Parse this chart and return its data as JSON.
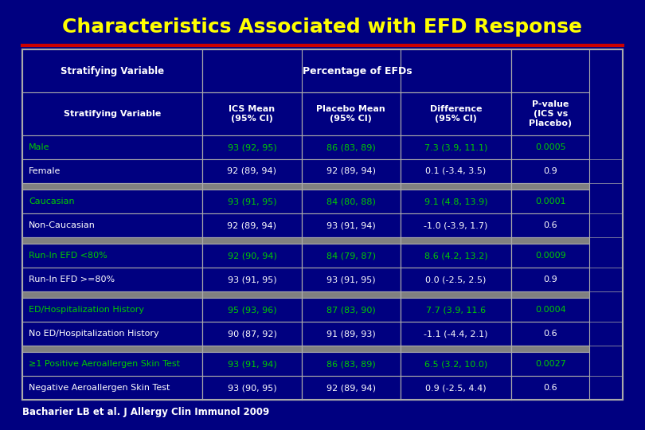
{
  "title": "Characteristics Associated with EFD Response",
  "title_color": "#FFFF00",
  "bg_color": "#000080",
  "table_bg_dark": "#000080",
  "table_bg_light": "#FFFFFF",
  "separator_color": "#808080",
  "red_line_color": "#CC0000",
  "footnote": "Bacharier LB et al. J Allergy Clin Immunol 2009",
  "col_headers": [
    "Stratifying Variable",
    "ICS Mean\n(95% CI)",
    "Placebo Mean\n(95% CI)",
    "Difference\n(95% CI)",
    "P-value\n(ICS vs\nPlacebo)"
  ],
  "span_header": "Percentage of EFDs",
  "rows": [
    {
      "label": "Male",
      "ics": "93 (92, 95)",
      "placebo": "86 (83, 89)",
      "diff": "7.3 (3.9, 11.1)",
      "pval": "0.0005",
      "highlight": true,
      "group_sep_before": false
    },
    {
      "label": "Female",
      "ics": "92 (89, 94)",
      "placebo": "92 (89, 94)",
      "diff": "0.1 (-3.4, 3.5)",
      "pval": "0.9",
      "highlight": false,
      "group_sep_before": false
    },
    {
      "label": "",
      "ics": "",
      "placebo": "",
      "diff": "",
      "pval": "",
      "highlight": false,
      "group_sep_before": true,
      "spacer": true
    },
    {
      "label": "Caucasian",
      "ics": "93 (91, 95)",
      "placebo": "84 (80, 88)",
      "diff": "9.1 (4.8, 13.9)",
      "pval": "0.0001",
      "highlight": true,
      "group_sep_before": false
    },
    {
      "label": "Non-Caucasian",
      "ics": "92 (89, 94)",
      "placebo": "93 (91, 94)",
      "diff": "-1.0 (-3.9, 1.7)",
      "pval": "0.6",
      "highlight": false,
      "group_sep_before": false
    },
    {
      "label": "",
      "ics": "",
      "placebo": "",
      "diff": "",
      "pval": "",
      "highlight": false,
      "group_sep_before": true,
      "spacer": true
    },
    {
      "label": "Run-In EFD <80%",
      "ics": "92 (90, 94)",
      "placebo": "84 (79, 87)",
      "diff": "8.6 (4.2, 13.2)",
      "pval": "0.0009",
      "highlight": true,
      "group_sep_before": false
    },
    {
      "label": "Run-In EFD >=80%",
      "ics": "93 (91, 95)",
      "placebo": "93 (91, 95)",
      "diff": "0.0 (-2.5, 2.5)",
      "pval": "0.9",
      "highlight": false,
      "group_sep_before": false
    },
    {
      "label": "",
      "ics": "",
      "placebo": "",
      "diff": "",
      "pval": "",
      "highlight": false,
      "group_sep_before": true,
      "spacer": true
    },
    {
      "label": "ED/Hospitalization History",
      "ics": "95 (93, 96)",
      "placebo": "87 (83, 90)",
      "diff": "7.7 (3.9, 11.6",
      "pval": "0.0004",
      "highlight": true,
      "group_sep_before": false
    },
    {
      "label": "No ED/Hospitalization History",
      "ics": "90 (87, 92)",
      "placebo": "91 (89, 93)",
      "diff": "-1.1 (-4.4, 2.1)",
      "pval": "0.6",
      "highlight": false,
      "group_sep_before": false
    },
    {
      "label": "",
      "ics": "",
      "placebo": "",
      "diff": "",
      "pval": "",
      "highlight": false,
      "group_sep_before": true,
      "spacer": true
    },
    {
      "label": "≥1 Positive Aeroallergen Skin Test",
      "ics": "93 (91, 94)",
      "placebo": "86 (83, 89)",
      "diff": "6.5 (3.2, 10.0)",
      "pval": "0.0027",
      "highlight": true,
      "group_sep_before": false
    },
    {
      "label": "Negative Aeroallergen Skin Test",
      "ics": "93 (90, 95)",
      "placebo": "92 (89, 94)",
      "diff": "0.9 (-2.5, 4.4)",
      "pval": "0.6",
      "highlight": false,
      "group_sep_before": false
    }
  ],
  "highlight_color": "#00CC00",
  "normal_color": "#FFFFFF",
  "header_text_color": "#FFFFFF",
  "header_bg_color": "#000080",
  "spacer_color": "#808080"
}
